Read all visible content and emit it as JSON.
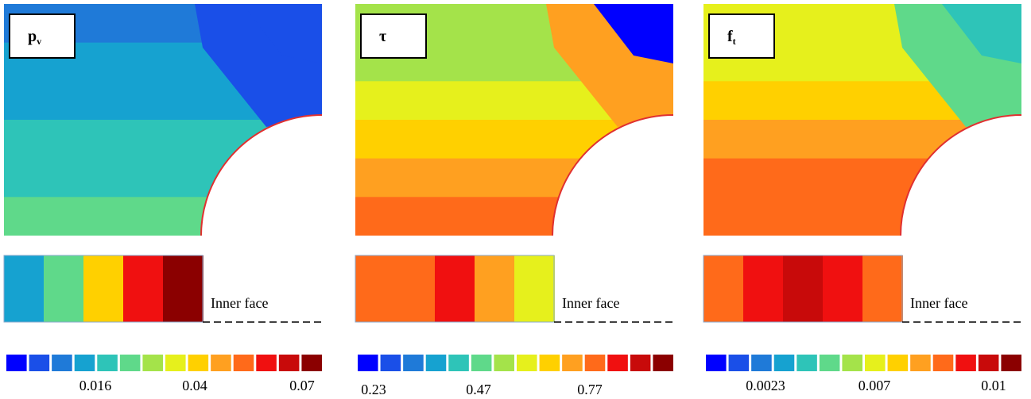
{
  "colormap": [
    "#0000ff",
    "#1a4fe8",
    "#1f7ad8",
    "#16a2d0",
    "#2ec4b8",
    "#5fd98a",
    "#a4e34a",
    "#e6f01c",
    "#ffd000",
    "#ffa020",
    "#ff6a1a",
    "#f01010",
    "#c80a0a",
    "#8b0000"
  ],
  "panels": [
    {
      "label": {
        "main": "p",
        "sub": "v"
      },
      "annotation": "Inner face",
      "colorbar_labels": [
        "0.016",
        "0.04",
        "0.07"
      ]
    },
    {
      "label": {
        "main": "τ"
      },
      "annotation": "Inner face",
      "colorbar_labels": [
        "0.23",
        "0.47",
        "0.77"
      ]
    },
    {
      "label": {
        "main": "f",
        "sub": "t"
      },
      "annotation": "Inner face",
      "colorbar_labels": [
        "0.0023",
        "0.007",
        "0.01"
      ]
    }
  ]
}
